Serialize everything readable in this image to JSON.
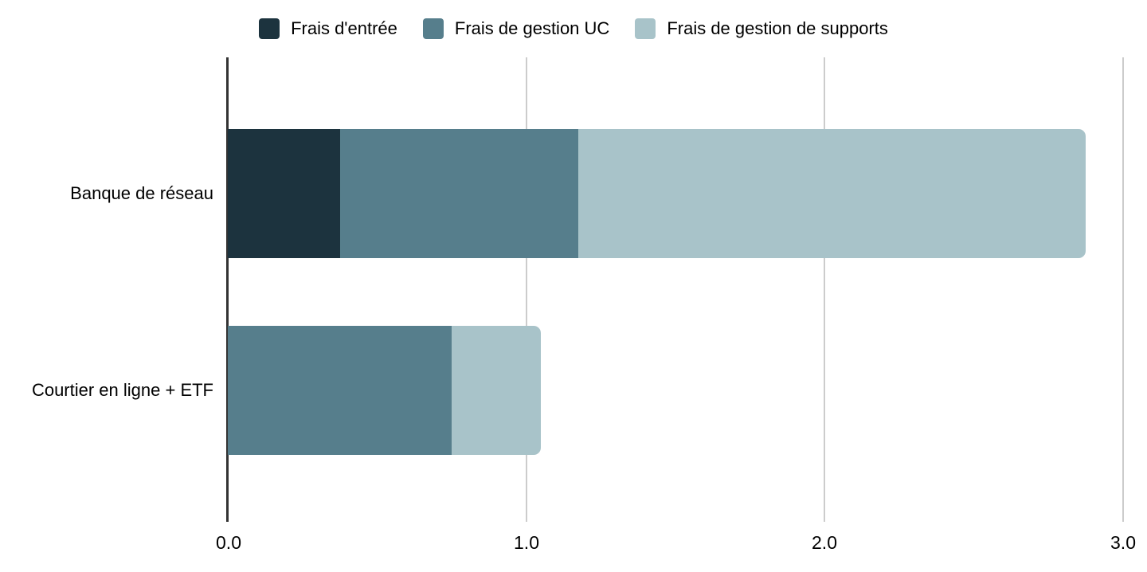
{
  "chart_data": {
    "type": "bar",
    "orientation": "horizontal",
    "stacked": true,
    "title": "",
    "categories": [
      "Banque de réseau",
      "Courtier en ligne + ETF"
    ],
    "series": [
      {
        "name": "Frais d'entrée",
        "color": "#1c333e",
        "values": [
          0.375,
          0
        ]
      },
      {
        "name": "Frais de gestion UC",
        "color": "#567e8c",
        "values": [
          0.8,
          0.75
        ]
      },
      {
        "name": "Frais de gestion de supports",
        "color": "#a8c3c9",
        "values": [
          1.7,
          0.3
        ]
      }
    ],
    "totals": [
      2.875,
      1.05
    ],
    "x_axis": {
      "min": 0,
      "max": 3,
      "tick_values": [
        0,
        1,
        2,
        3
      ],
      "tick_labels": [
        "0.0",
        "1.0",
        "2.0",
        "3.0"
      ]
    },
    "grid": true,
    "legend_position": "top"
  },
  "legend": {
    "items": [
      {
        "label": "Frais d'entrée",
        "color": "#1c333e"
      },
      {
        "label": "Frais de gestion UC",
        "color": "#567e8c"
      },
      {
        "label": "Frais de gestion de supports",
        "color": "#a8c3c9"
      }
    ]
  },
  "style_colors": {
    "axis_line": "#333333",
    "gridline": "#cccccc",
    "text": "#000000",
    "background": "#ffffff"
  }
}
